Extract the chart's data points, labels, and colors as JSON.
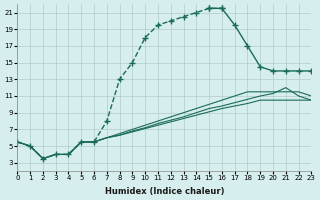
{
  "xlabel": "Humidex (Indice chaleur)",
  "xlim": [
    0,
    23
  ],
  "ylim": [
    2,
    22
  ],
  "xticks": [
    0,
    1,
    2,
    3,
    4,
    5,
    6,
    7,
    8,
    9,
    10,
    11,
    12,
    13,
    14,
    15,
    16,
    17,
    18,
    19,
    20,
    21,
    22,
    23
  ],
  "yticks": [
    3,
    5,
    7,
    9,
    11,
    13,
    15,
    17,
    19,
    21
  ],
  "bg_color": "#d6eeed",
  "grid_color": "#b0ccc9",
  "line_color": "#1a6b5a",
  "main_rise_x": [
    0,
    1,
    2,
    3,
    4,
    5,
    6,
    7,
    8,
    9,
    10,
    11,
    12,
    13,
    14,
    15,
    16
  ],
  "main_rise_y": [
    5.5,
    5.0,
    3.5,
    4.0,
    4.0,
    5.5,
    5.5,
    8.0,
    13.0,
    15.0,
    18.0,
    19.5,
    20.0,
    20.5,
    21.0,
    21.5,
    21.5
  ],
  "main_fall_x": [
    15,
    16,
    17,
    18,
    19,
    20,
    21,
    22,
    23
  ],
  "main_fall_y": [
    21.5,
    21.5,
    19.5,
    17.0,
    14.5,
    14.0,
    14.0,
    14.0,
    14.0
  ],
  "low1_x": [
    0,
    1,
    2,
    3,
    4,
    5,
    6,
    7,
    8,
    9,
    10,
    11,
    12,
    13,
    14,
    15,
    16,
    17,
    18,
    19,
    20,
    21,
    22,
    23
  ],
  "low1_y": [
    5.5,
    5.0,
    3.5,
    4.0,
    4.0,
    5.5,
    5.5,
    6.0,
    6.5,
    7.0,
    7.5,
    8.0,
    8.5,
    9.0,
    9.5,
    10.0,
    10.5,
    11.0,
    11.5,
    11.5,
    11.5,
    11.5,
    11.5,
    11.0
  ],
  "low2_x": [
    0,
    1,
    2,
    3,
    4,
    5,
    6,
    7,
    8,
    9,
    10,
    11,
    12,
    13,
    14,
    15,
    16,
    17,
    18,
    19,
    20,
    21,
    22,
    23
  ],
  "low2_y": [
    5.5,
    5.0,
    3.5,
    4.0,
    4.0,
    5.5,
    5.5,
    6.0,
    6.3,
    6.8,
    7.2,
    7.7,
    8.1,
    8.5,
    9.0,
    9.5,
    9.8,
    10.2,
    10.6,
    11.0,
    11.3,
    12.0,
    11.0,
    10.5
  ],
  "low3_x": [
    0,
    1,
    2,
    3,
    4,
    5,
    6,
    7,
    8,
    9,
    10,
    11,
    12,
    13,
    14,
    15,
    16,
    17,
    18,
    19,
    20,
    21,
    22,
    23
  ],
  "low3_y": [
    5.5,
    5.0,
    3.5,
    4.0,
    4.0,
    5.5,
    5.5,
    6.0,
    6.3,
    6.7,
    7.1,
    7.5,
    7.9,
    8.3,
    8.7,
    9.1,
    9.5,
    9.8,
    10.1,
    10.5,
    10.5,
    10.5,
    10.5,
    10.5
  ]
}
